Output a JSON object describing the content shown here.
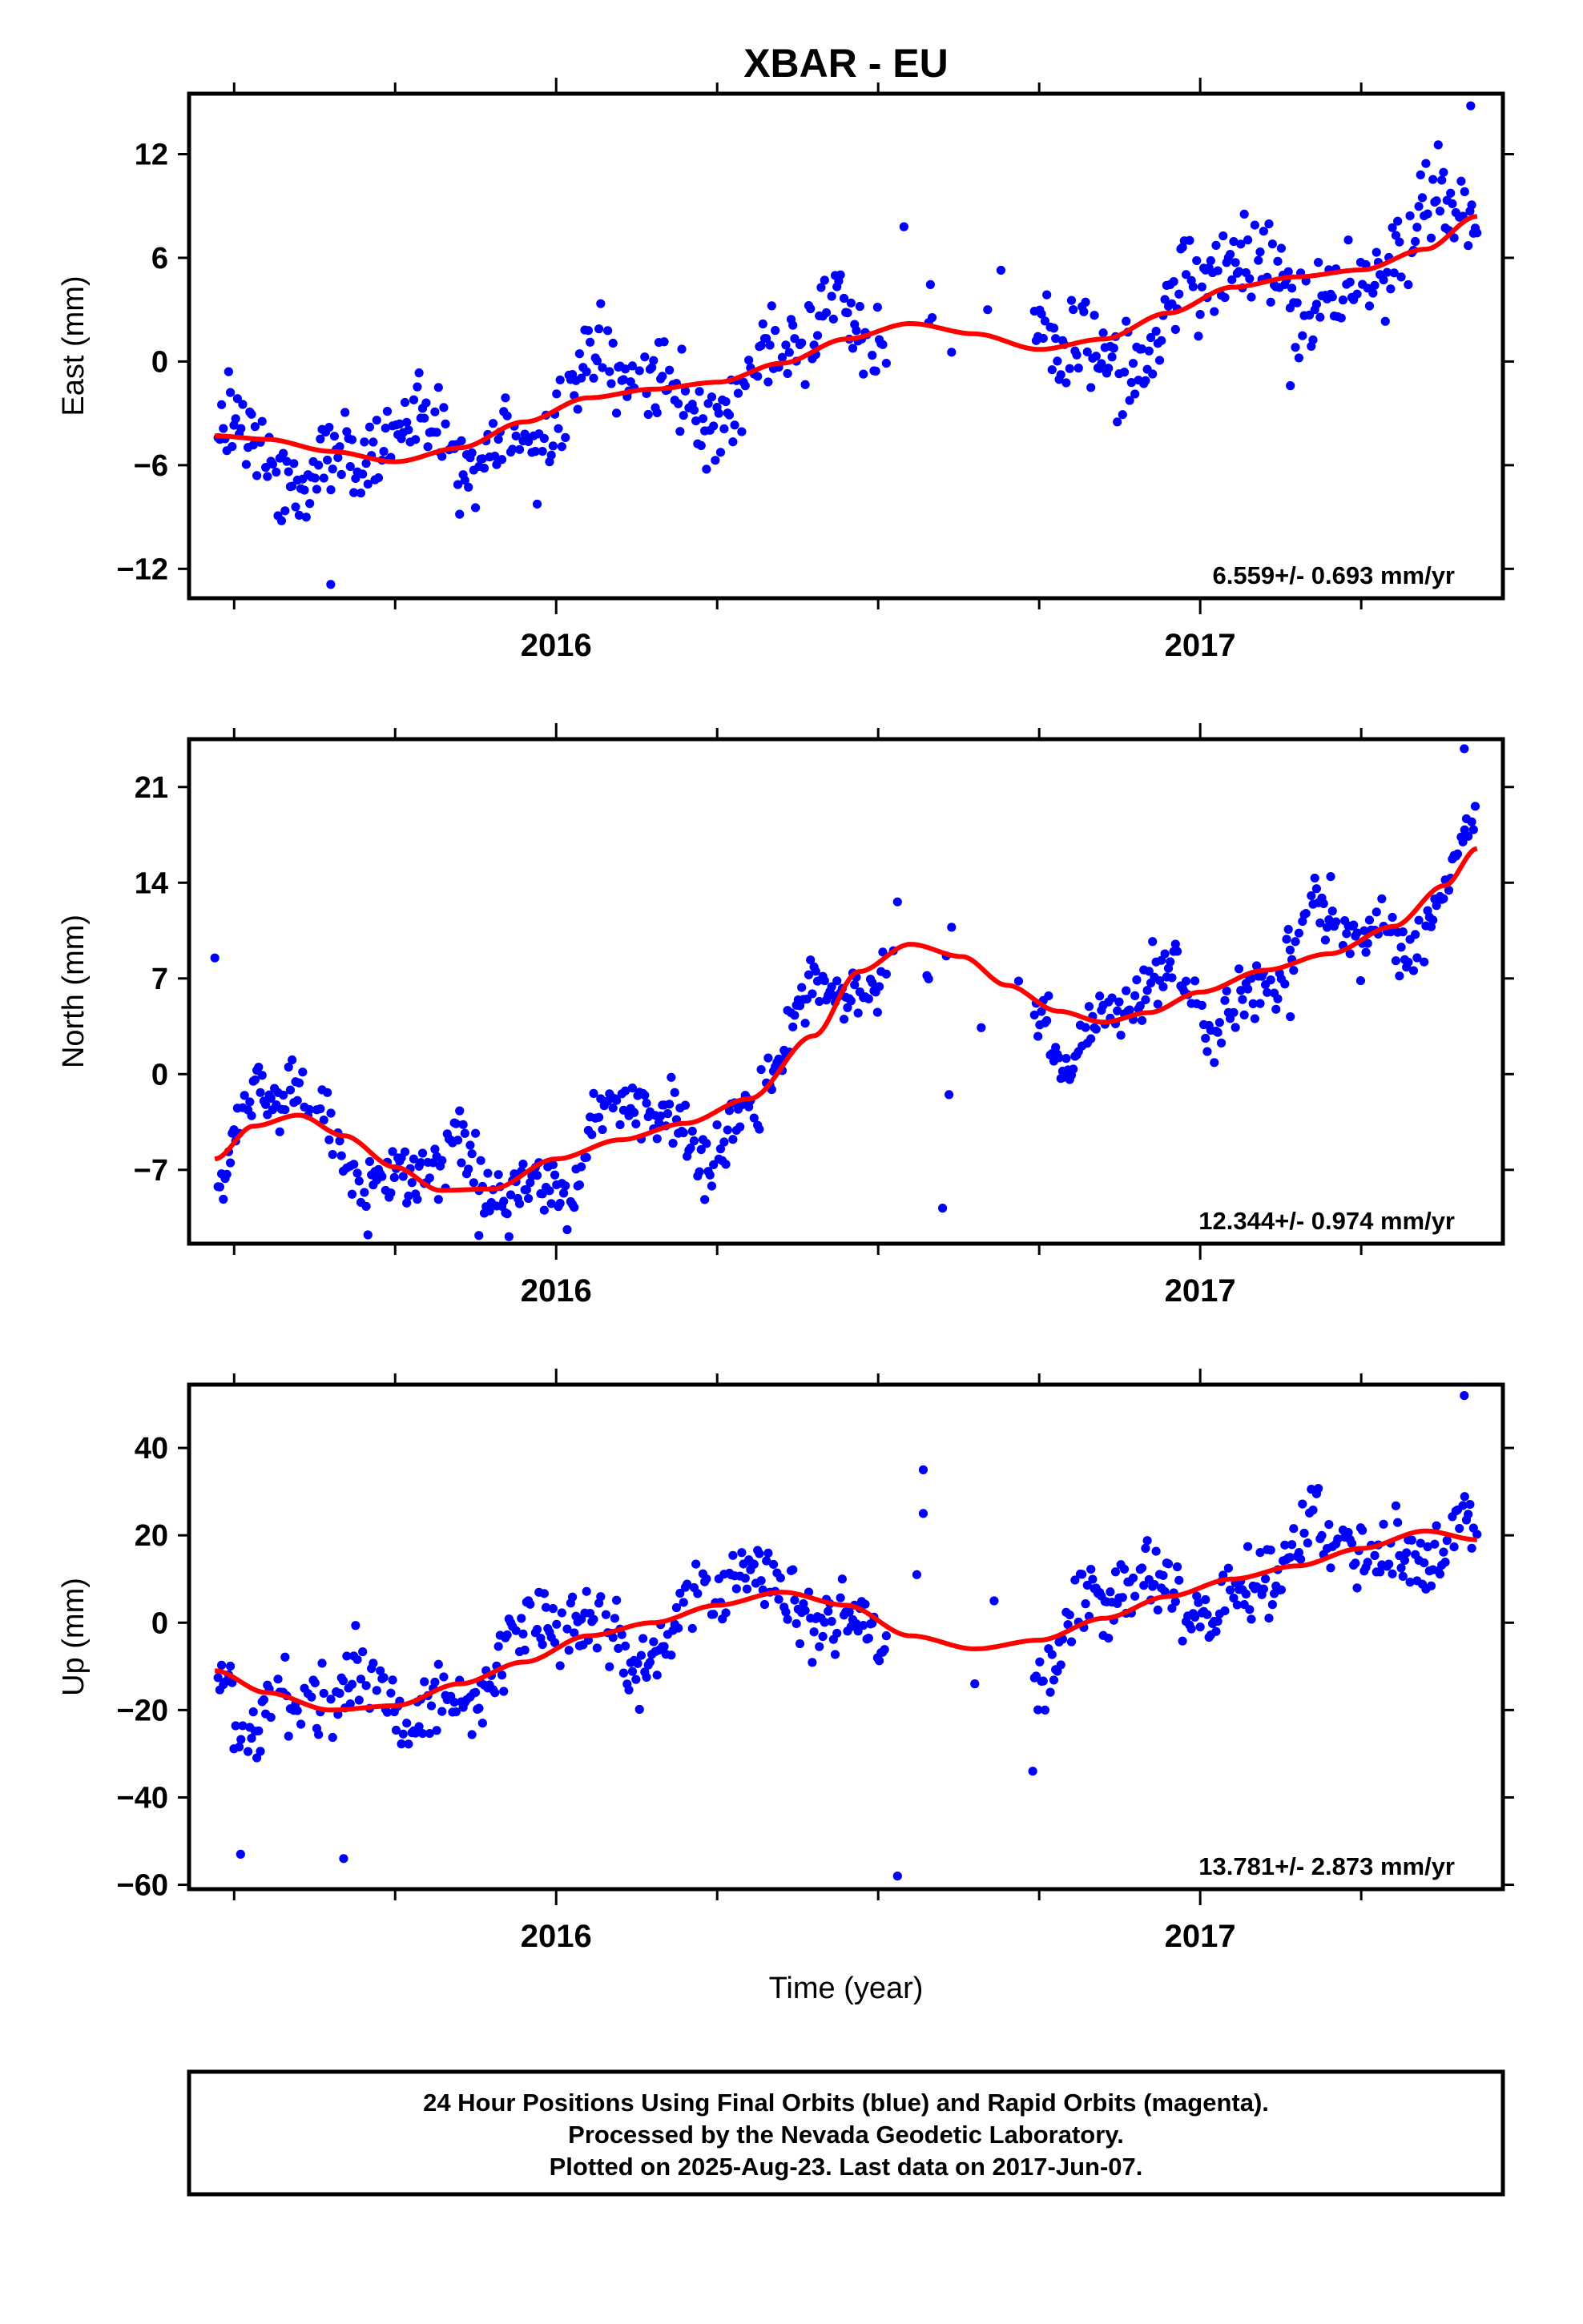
{
  "title": "XBAR - EU",
  "xlabel": "Time (year)",
  "footer": [
    "24 Hour Positions Using Final Orbits (blue) and Rapid Orbits (magenta).",
    "Processed by the Nevada Geodetic Laboratory.",
    "Plotted on 2025-Aug-23. Last data on 2017-Jun-07."
  ],
  "colors": {
    "points": "#0000ff",
    "model": "#ff0000",
    "frame": "#000000"
  },
  "chart_data": [
    {
      "type": "scatter",
      "component": "East",
      "ylabel": "East (mm)",
      "xlim": [
        2015.43,
        2017.47
      ],
      "ylim": [
        -13.7,
        15.5
      ],
      "yticks": [
        -12,
        -6,
        0,
        6,
        12
      ],
      "ytick_labels": [
        "−12",
        "−6",
        "0",
        "6",
        "12"
      ],
      "x_year_labels": [
        {
          "x": 2016.0,
          "label": "2016"
        },
        {
          "x": 2017.0,
          "label": "2017"
        }
      ],
      "rate_text": "6.559+/- 0.693 mm/yr",
      "model_curve": {
        "x": [
          2015.47,
          2015.55,
          2015.65,
          2015.75,
          2015.85,
          2015.95,
          2016.05,
          2016.15,
          2016.25,
          2016.35,
          2016.45,
          2016.55,
          2016.65,
          2016.75,
          2016.85,
          2016.95,
          2017.05,
          2017.15,
          2017.25,
          2017.35,
          2017.43
        ],
        "y": [
          -4.3,
          -4.5,
          -5.2,
          -5.8,
          -5.0,
          -3.5,
          -2.1,
          -1.6,
          -1.2,
          -0.1,
          1.3,
          2.2,
          1.6,
          0.7,
          1.3,
          2.8,
          4.3,
          4.9,
          5.3,
          6.5,
          8.4
        ]
      },
      "points_model": {
        "amp1": 1.9,
        "amp2": 0.9,
        "period": 0.32,
        "spread": 2.6
      },
      "outliers": [
        {
          "x": 2015.65,
          "y": -12.9
        },
        {
          "x": 2016.54,
          "y": 7.8
        },
        {
          "x": 2017.42,
          "y": 14.8
        },
        {
          "x": 2017.14,
          "y": -1.4
        },
        {
          "x": 2016.67,
          "y": 3.0
        }
      ]
    },
    {
      "type": "scatter",
      "component": "North",
      "ylabel": "North (mm)",
      "xlim": [
        2015.43,
        2017.47
      ],
      "ylim": [
        -12.4,
        24.5
      ],
      "yticks": [
        -7,
        0,
        7,
        14,
        21
      ],
      "ytick_labels": [
        "−7",
        "0",
        "7",
        "14",
        "21"
      ],
      "x_year_labels": [
        {
          "x": 2016.0,
          "label": "2016"
        },
        {
          "x": 2017.0,
          "label": "2017"
        }
      ],
      "rate_text": "12.344+/- 0.974 mm/yr",
      "model_curve": {
        "x": [
          2015.47,
          2015.53,
          2015.6,
          2015.67,
          2015.75,
          2015.82,
          2015.9,
          2016.0,
          2016.1,
          2016.2,
          2016.3,
          2016.4,
          2016.47,
          2016.55,
          2016.63,
          2016.7,
          2016.78,
          2016.85,
          2016.92,
          2017.0,
          2017.1,
          2017.2,
          2017.3,
          2017.38,
          2017.43
        ],
        "y": [
          -6.2,
          -3.8,
          -3.0,
          -4.5,
          -6.8,
          -8.5,
          -8.4,
          -6.2,
          -4.8,
          -3.6,
          -1.8,
          2.8,
          7.5,
          9.5,
          8.6,
          6.5,
          4.6,
          3.8,
          4.5,
          6.0,
          7.6,
          8.8,
          10.8,
          13.8,
          16.5
        ]
      },
      "points_model": {
        "amp1": 2.6,
        "amp2": 1.2,
        "period": 0.27,
        "spread": 2.3
      },
      "outliers": [
        {
          "x": 2015.47,
          "y": 8.5
        },
        {
          "x": 2016.53,
          "y": 12.6
        },
        {
          "x": 2016.6,
          "y": -9.8
        },
        {
          "x": 2016.61,
          "y": -1.5
        },
        {
          "x": 2016.66,
          "y": 3.4
        },
        {
          "x": 2015.88,
          "y": -11.8
        },
        {
          "x": 2017.41,
          "y": 23.8
        },
        {
          "x": 2017.14,
          "y": 4.2
        }
      ]
    },
    {
      "type": "scatter",
      "component": "Up",
      "ylabel": "Up (mm)",
      "xlim": [
        2015.43,
        2017.47
      ],
      "ylim": [
        -61,
        54.5
      ],
      "yticks": [
        -60,
        -40,
        -20,
        0,
        20,
        40
      ],
      "ytick_labels": [
        "−60",
        "−40",
        "−20",
        "0",
        "20",
        "40"
      ],
      "x_year_labels": [
        {
          "x": 2016.0,
          "label": "2016"
        },
        {
          "x": 2017.0,
          "label": "2017"
        }
      ],
      "rate_text": "13.781+/- 2.873 mm/yr",
      "model_curve": {
        "x": [
          2015.47,
          2015.55,
          2015.65,
          2015.75,
          2015.85,
          2015.95,
          2016.05,
          2016.15,
          2016.25,
          2016.35,
          2016.45,
          2016.55,
          2016.65,
          2016.75,
          2016.85,
          2016.95,
          2017.05,
          2017.15,
          2017.25,
          2017.35,
          2017.43
        ],
        "y": [
          -11,
          -16,
          -20,
          -19,
          -14,
          -9,
          -3,
          0,
          4,
          7,
          4,
          -3,
          -6,
          -4,
          1,
          6,
          10,
          13,
          17,
          21,
          19
        ]
      },
      "points_model": {
        "amp1": 6.5,
        "amp2": 3.0,
        "period": 0.3,
        "spread": 8.5
      },
      "outliers": [
        {
          "x": 2015.51,
          "y": -53
        },
        {
          "x": 2015.67,
          "y": -54
        },
        {
          "x": 2016.53,
          "y": -58
        },
        {
          "x": 2016.57,
          "y": 35
        },
        {
          "x": 2016.57,
          "y": 25
        },
        {
          "x": 2016.56,
          "y": 11
        },
        {
          "x": 2016.74,
          "y": -34
        },
        {
          "x": 2017.41,
          "y": 52
        },
        {
          "x": 2016.65,
          "y": -14
        },
        {
          "x": 2016.68,
          "y": 5
        }
      ]
    }
  ]
}
